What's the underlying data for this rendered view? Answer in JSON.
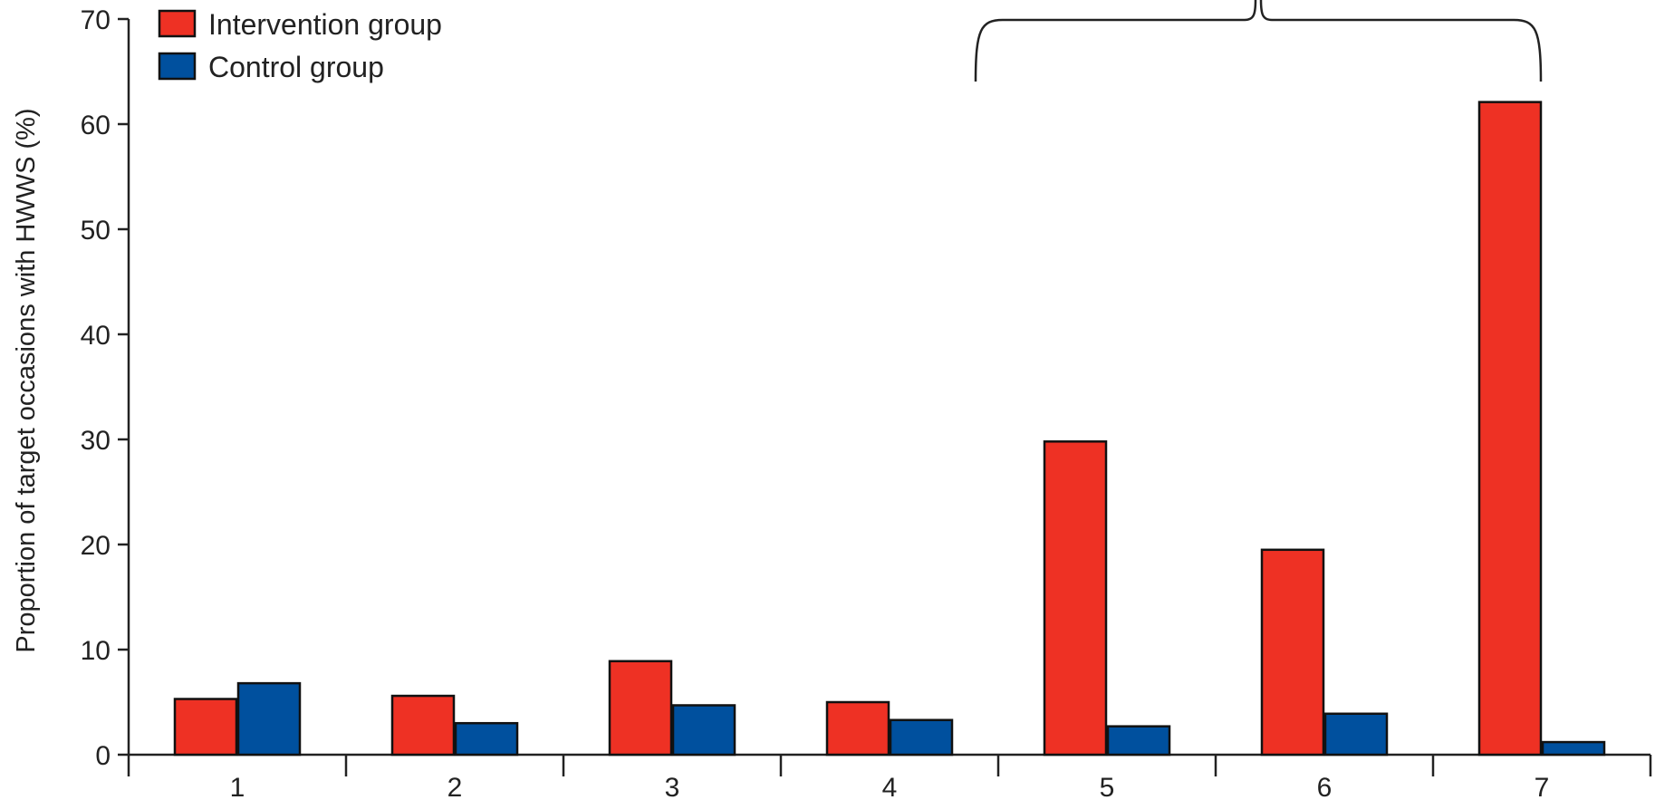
{
  "chart_data": {
    "type": "bar",
    "title": "",
    "xlabel": "",
    "ylabel": "Proportion of target occasions with HWWS (%)",
    "ylim": [
      0,
      70
    ],
    "yticks": [
      0,
      10,
      20,
      30,
      40,
      50,
      60,
      70
    ],
    "categories": [
      "1",
      "2",
      "3",
      "4",
      "5",
      "6",
      "7"
    ],
    "series": [
      {
        "name": "Intervention group",
        "color": "#ee3124",
        "values": [
          5.3,
          5.6,
          8.9,
          5.0,
          29.8,
          19.5,
          62.1
        ]
      },
      {
        "name": "Control group",
        "color": "#00509e",
        "values": [
          6.8,
          3.0,
          4.7,
          3.3,
          2.7,
          3.9,
          1.2
        ]
      }
    ],
    "legend": {
      "placement": "top-left"
    },
    "grid": false,
    "annotation": {
      "type": "brace",
      "from_category": "5",
      "to_category": "7"
    }
  }
}
